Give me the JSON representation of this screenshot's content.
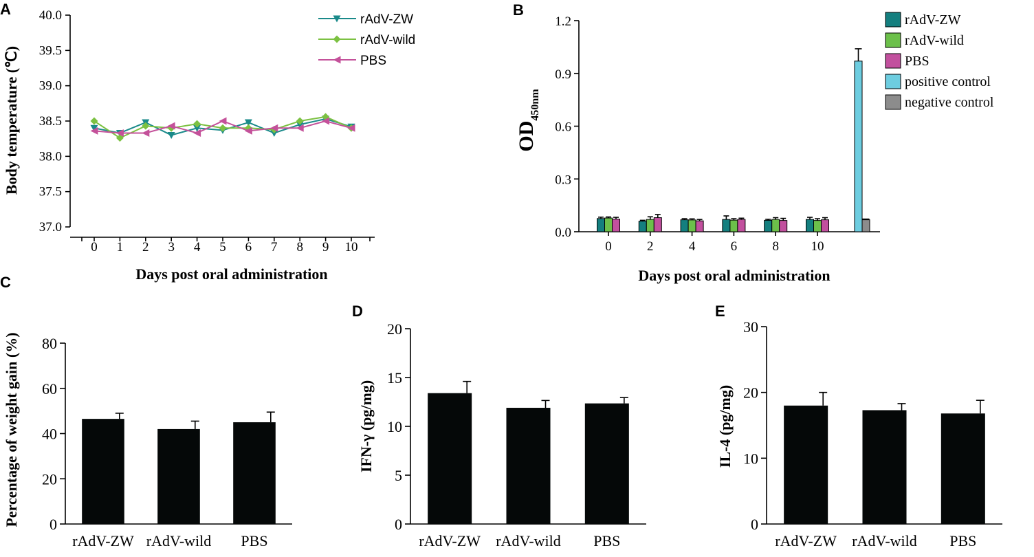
{
  "chart_data": [
    {
      "panel": "A",
      "type": "line",
      "xlabel": "Days post oral administration",
      "ylabel": "Body temperature (℃)",
      "x": [
        0,
        1,
        2,
        3,
        4,
        5,
        6,
        7,
        8,
        9,
        10
      ],
      "ylim": [
        37.0,
        40.0
      ],
      "yticks": [
        "37.0",
        "37.5",
        "38.0",
        "38.5",
        "39.0",
        "39.5",
        "40.0"
      ],
      "series": [
        {
          "name": "rAdV-ZW",
          "color": "#1a8a8a",
          "marker": "triangle-down",
          "values": [
            38.4,
            38.33,
            38.48,
            38.3,
            38.4,
            38.37,
            38.48,
            38.33,
            38.45,
            38.53,
            38.42
          ]
        },
        {
          "name": "rAdV-wild",
          "color": "#7cc142",
          "marker": "diamond",
          "values": [
            38.5,
            38.26,
            38.43,
            38.4,
            38.46,
            38.4,
            38.4,
            38.38,
            38.5,
            38.56,
            38.4
          ]
        },
        {
          "name": "PBS",
          "color": "#c4519a",
          "marker": "triangle-left",
          "values": [
            38.36,
            38.33,
            38.33,
            38.43,
            38.33,
            38.5,
            38.36,
            38.4,
            38.4,
            38.5,
            38.4
          ]
        }
      ]
    },
    {
      "panel": "B",
      "type": "bar",
      "xlabel": "Days post oral administration",
      "ylabel": "OD",
      "ylabel_sub": "450nm",
      "ylim": [
        0,
        1.2
      ],
      "yticks": [
        "0.0",
        "0.3",
        "0.6",
        "0.9",
        "1.2"
      ],
      "categories": [
        "0",
        "2",
        "4",
        "6",
        "8",
        "10",
        ""
      ],
      "series": [
        {
          "name": "rAdV-ZW",
          "color": "#147f7f",
          "values": [
            0.075,
            0.06,
            0.068,
            0.07,
            0.065,
            0.07,
            null
          ],
          "errors": [
            0.008,
            0.005,
            0.006,
            0.02,
            0.006,
            0.012,
            null
          ]
        },
        {
          "name": "rAdV-wild",
          "color": "#6cc04a",
          "values": [
            0.078,
            0.07,
            0.067,
            0.066,
            0.07,
            0.064,
            null
          ],
          "errors": [
            0.006,
            0.015,
            0.006,
            0.008,
            0.01,
            0.01,
            null
          ]
        },
        {
          "name": "PBS",
          "color": "#c2509e",
          "values": [
            0.072,
            0.08,
            0.062,
            0.07,
            0.064,
            0.068,
            null
          ],
          "errors": [
            0.01,
            0.018,
            0.008,
            0.007,
            0.012,
            0.012,
            null
          ]
        },
        {
          "name": "positive control",
          "color": "#6dcde0",
          "values": [
            null,
            null,
            null,
            null,
            null,
            null,
            0.97
          ],
          "errors": [
            null,
            null,
            null,
            null,
            null,
            null,
            0.07
          ]
        },
        {
          "name": "negative control",
          "color": "#8c8c8c",
          "values": [
            null,
            null,
            null,
            null,
            null,
            null,
            0.068
          ],
          "errors": [
            null,
            null,
            null,
            null,
            null,
            null,
            0.004
          ]
        }
      ]
    },
    {
      "panel": "C",
      "type": "bar",
      "ylabel": "Percentage of weight gain (%)",
      "ylim": [
        0,
        80
      ],
      "yticks": [
        "0",
        "20",
        "40",
        "60",
        "80"
      ],
      "categories": [
        "rAdV-ZW",
        "rAdV-wild",
        "PBS"
      ],
      "values": [
        46.5,
        42,
        45
      ],
      "errors": [
        2.5,
        3.5,
        4.5
      ],
      "color": "#050808"
    },
    {
      "panel": "D",
      "type": "bar",
      "ylabel": "IFN-γ (pg/mg)",
      "ylim": [
        0,
        20
      ],
      "yticks": [
        "0",
        "5",
        "10",
        "15",
        "20"
      ],
      "categories": [
        "rAdV-ZW",
        "rAdV-wild",
        "PBS"
      ],
      "values": [
        13.4,
        11.9,
        12.35
      ],
      "errors": [
        1.2,
        0.75,
        0.6
      ],
      "color": "#050808"
    },
    {
      "panel": "E",
      "type": "bar",
      "ylabel": "IL-4 (pg/mg)",
      "ylim": [
        0,
        30
      ],
      "yticks": [
        "0",
        "10",
        "20",
        "30"
      ],
      "categories": [
        "rAdV-ZW",
        "rAdV-wild",
        "PBS"
      ],
      "values": [
        18,
        17.3,
        16.8
      ],
      "errors": [
        2.0,
        1.0,
        2.0
      ],
      "color": "#050808"
    }
  ]
}
